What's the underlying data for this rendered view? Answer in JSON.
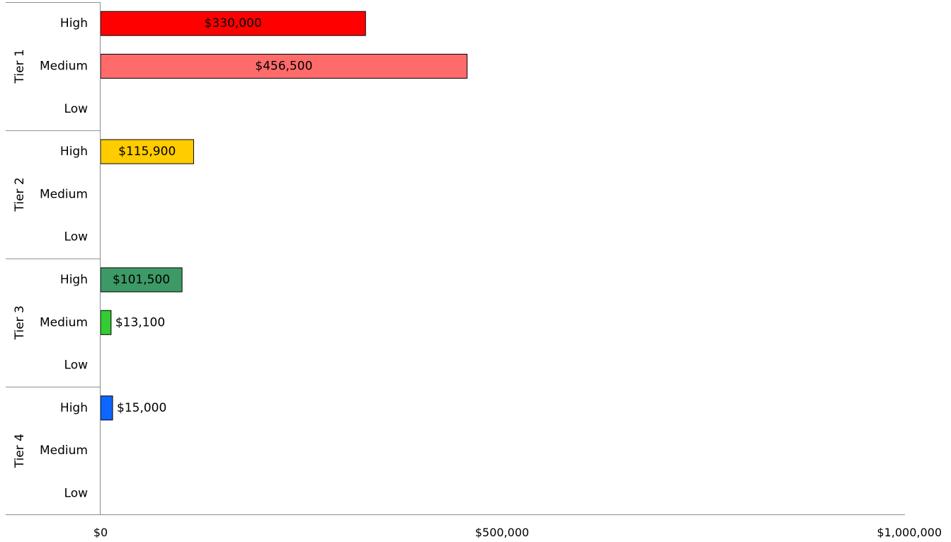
{
  "chart_data": {
    "type": "bar",
    "orientation": "horizontal",
    "xlim": [
      0,
      1000000
    ],
    "x_ticks": [
      {
        "value": 0,
        "label": "$0"
      },
      {
        "value": 500000,
        "label": "$500,000"
      },
      {
        "value": 1000000,
        "label": "$1,000,000"
      }
    ],
    "grid": false,
    "groups": [
      {
        "name": "Tier 1",
        "categories": [
          {
            "name": "High",
            "value": 330000,
            "label": "$330,000",
            "color": "#ff0000",
            "label_position": "inside"
          },
          {
            "name": "Medium",
            "value": 456500,
            "label": "$456,500",
            "color": "#ff6b6b",
            "label_position": "inside"
          },
          {
            "name": "Low",
            "value": null,
            "label": "",
            "color": "",
            "label_position": ""
          }
        ]
      },
      {
        "name": "Tier 2",
        "categories": [
          {
            "name": "High",
            "value": 115900,
            "label": "$115,900",
            "color": "#ffcc00",
            "label_position": "inside"
          },
          {
            "name": "Medium",
            "value": null,
            "label": "",
            "color": "",
            "label_position": ""
          },
          {
            "name": "Low",
            "value": null,
            "label": "",
            "color": "",
            "label_position": ""
          }
        ]
      },
      {
        "name": "Tier 3",
        "categories": [
          {
            "name": "High",
            "value": 101500,
            "label": "$101,500",
            "color": "#3d9966",
            "label_position": "inside"
          },
          {
            "name": "Medium",
            "value": 13100,
            "label": "$13,100",
            "color": "#33cc33",
            "label_position": "outside"
          },
          {
            "name": "Low",
            "value": null,
            "label": "",
            "color": "",
            "label_position": ""
          }
        ]
      },
      {
        "name": "Tier 4",
        "categories": [
          {
            "name": "High",
            "value": 15000,
            "label": "$15,000",
            "color": "#0d66ff",
            "label_position": "outside"
          },
          {
            "name": "Medium",
            "value": null,
            "label": "",
            "color": "",
            "label_position": ""
          },
          {
            "name": "Low",
            "value": null,
            "label": "",
            "color": "",
            "label_position": ""
          }
        ]
      }
    ]
  }
}
